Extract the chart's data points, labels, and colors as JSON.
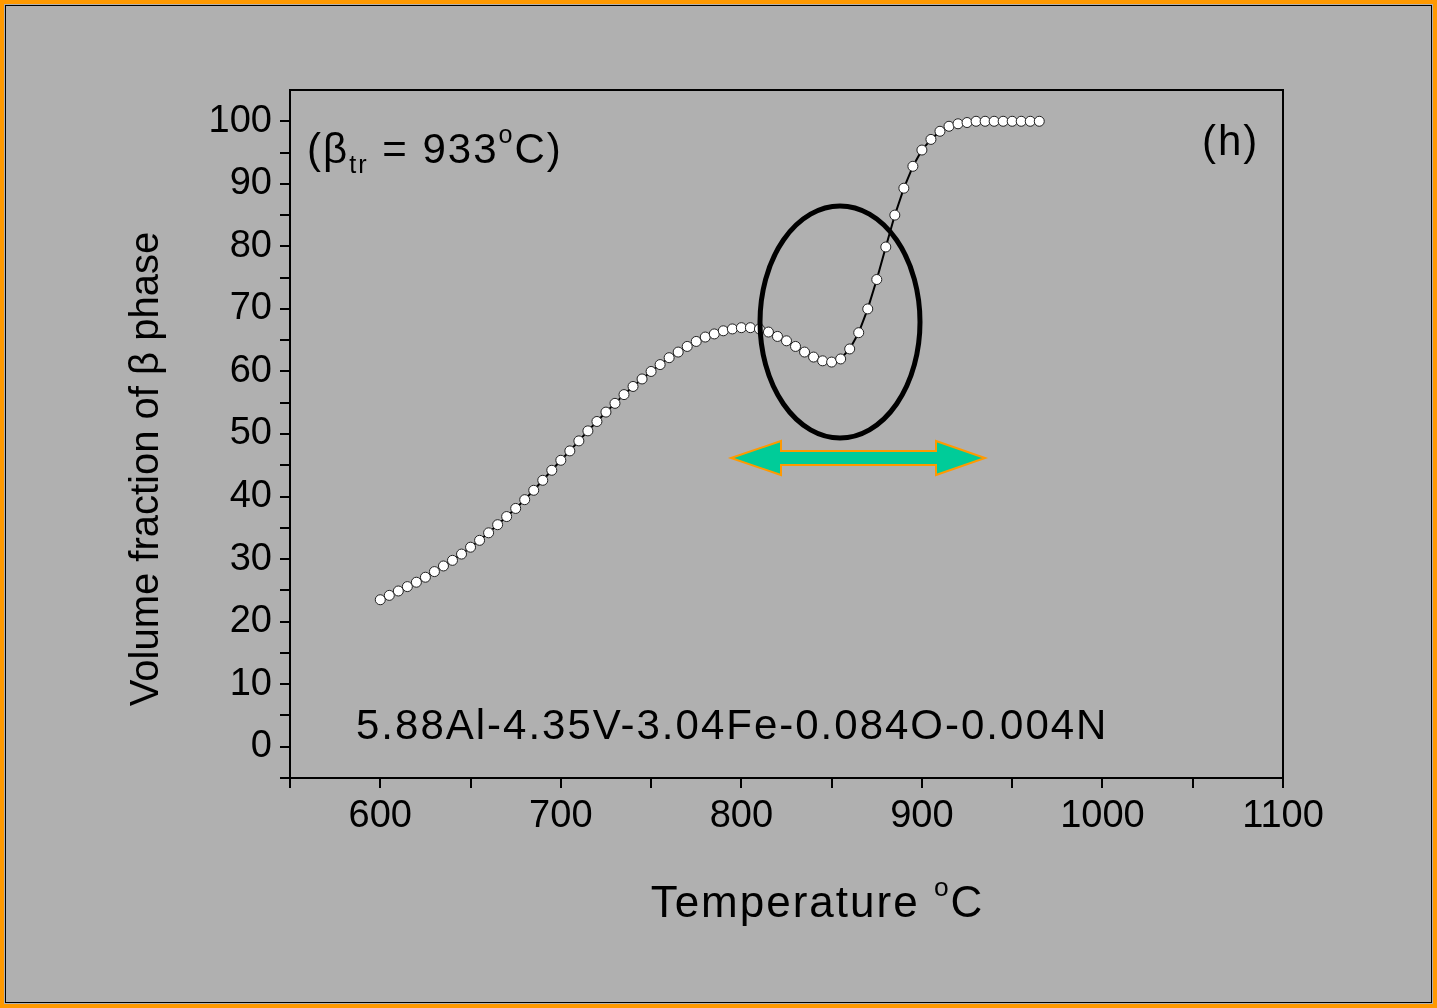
{
  "chart_data": {
    "type": "line",
    "xlabel": "Temperature $^{o}$C",
    "ylabel": "Volume fraction of β phase",
    "annotations": [
      "(β$_{tr}$ = 933$^{o}$C)",
      "(h)",
      "5.88Al-4.35V-3.04Fe-0.084O-0.004N"
    ],
    "x": [
      600,
      605,
      610,
      615,
      620,
      625,
      630,
      635,
      640,
      645,
      650,
      655,
      660,
      665,
      670,
      675,
      680,
      685,
      690,
      695,
      700,
      705,
      710,
      715,
      720,
      725,
      730,
      735,
      740,
      745,
      750,
      755,
      760,
      765,
      770,
      775,
      780,
      785,
      790,
      795,
      800,
      805,
      810,
      815,
      820,
      825,
      830,
      835,
      840,
      845,
      850,
      855,
      860,
      865,
      870,
      875,
      880,
      885,
      890,
      895,
      900,
      905,
      910,
      915,
      920,
      925,
      930,
      935,
      940,
      945,
      950,
      955,
      960,
      965
    ],
    "series": [
      {
        "color": "#000000",
        "values": [
          23.5,
          24.2,
          24.9,
          25.6,
          26.3,
          27.1,
          28.0,
          28.9,
          29.8,
          30.8,
          31.9,
          33.0,
          34.2,
          35.5,
          36.8,
          38.1,
          39.5,
          41.0,
          42.6,
          44.2,
          45.8,
          47.3,
          48.9,
          50.5,
          52.0,
          53.5,
          54.9,
          56.3,
          57.6,
          58.8,
          60.0,
          61.1,
          62.2,
          63.1,
          64.0,
          64.8,
          65.5,
          66.0,
          66.5,
          66.8,
          67.0,
          67.0,
          66.8,
          66.3,
          65.6,
          64.9,
          64.0,
          63.1,
          62.3,
          61.7,
          61.5,
          62.0,
          63.6,
          66.2,
          70.0,
          74.7,
          79.9,
          85.0,
          89.3,
          92.8,
          95.4,
          97.1,
          98.4,
          99.2,
          99.6,
          99.8,
          100,
          100,
          100,
          100,
          100,
          100,
          100,
          100
        ]
      }
    ],
    "xlim": [
      550,
      1100
    ],
    "xticks": [
      {
        "value": 550,
        "label": null
      },
      600,
      {
        "value": 650,
        "label": null
      },
      700,
      {
        "value": 750,
        "label": null
      },
      800,
      {
        "value": 850,
        "label": null
      },
      900,
      {
        "value": 950,
        "label": null
      },
      1000,
      {
        "value": 1050,
        "label": null
      },
      1100
    ],
    "ylim": [
      -5,
      105
    ],
    "yticks": [
      {
        "value": -5,
        "label": null
      },
      0,
      {
        "value": 5,
        "label": null
      },
      10,
      {
        "value": 15,
        "label": null
      },
      20,
      {
        "value": 25,
        "label": null
      },
      30,
      {
        "value": 35,
        "label": null
      },
      40,
      {
        "value": 45,
        "label": null
      },
      50,
      {
        "value": 55,
        "label": null
      },
      60,
      {
        "value": 65,
        "label": null
      },
      70,
      {
        "value": 75,
        "label": null
      },
      80,
      {
        "value": 85,
        "label": null
      },
      90,
      {
        "value": 95,
        "label": null
      },
      100
    ],
    "grid": false,
    "legend": false,
    "marker": "circle",
    "line_style": "solid"
  }
}
